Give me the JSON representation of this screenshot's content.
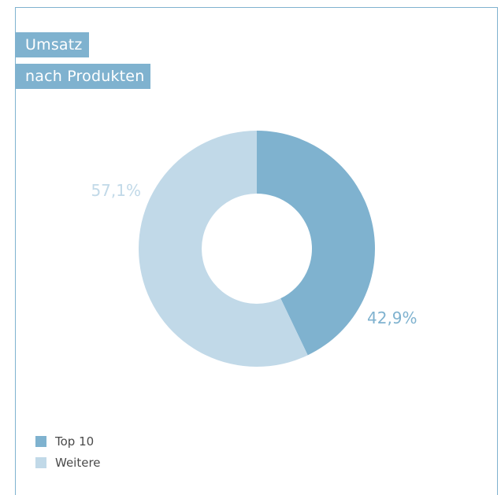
{
  "title": {
    "line1": "Umsatz",
    "line2": "nach Produkten"
  },
  "colors": {
    "accent": "#7fb2cf",
    "light": "#c1d9e8"
  },
  "chart_data": {
    "type": "pie",
    "donut": true,
    "title": "Umsatz nach Produkten",
    "legend_position": "bottom-left",
    "categories": [
      "Top 10",
      "Weitere"
    ],
    "values": [
      42.9,
      57.1
    ],
    "labels": [
      "42,9%",
      "57,1%"
    ],
    "colors": [
      "#7fb2cf",
      "#c1d9e8"
    ],
    "start_angle_deg": 0,
    "direction": "clockwise"
  },
  "legend": {
    "items": [
      {
        "label": "Top 10",
        "color": "#7fb2cf"
      },
      {
        "label": "Weitere",
        "color": "#c1d9e8"
      }
    ]
  }
}
